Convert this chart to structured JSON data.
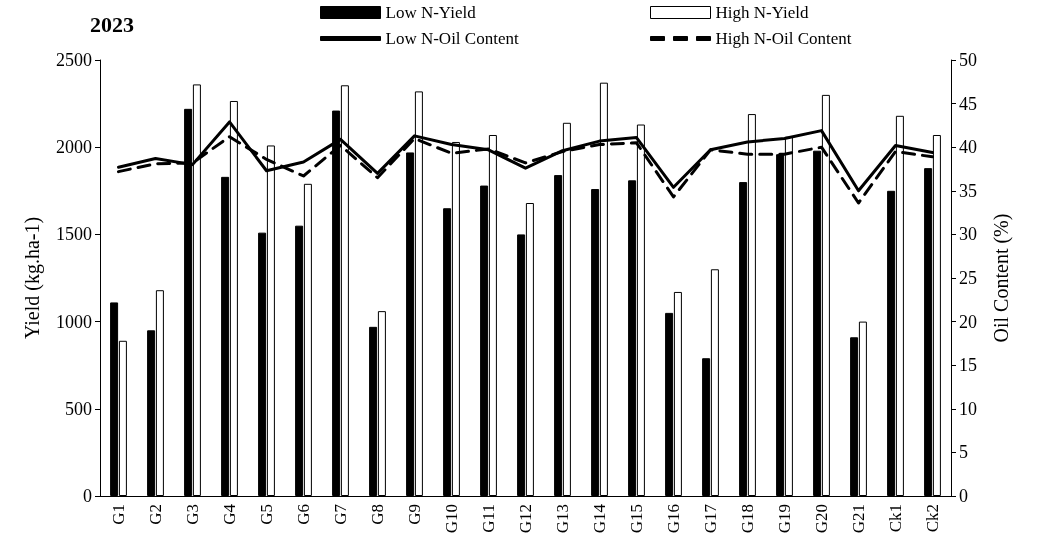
{
  "chart_data": {
    "type": "bar",
    "title": "2023",
    "ylabel": "Yield (kg.ha-1)",
    "y2label": "Oil Content (%)",
    "categories": [
      "G1",
      "G2",
      "G3",
      "G4",
      "G5",
      "G6",
      "G7",
      "G8",
      "G9",
      "G10",
      "G11",
      "G12",
      "G13",
      "G14",
      "G15",
      "G16",
      "G17",
      "G18",
      "G19",
      "G20",
      "G21",
      "Ck1",
      "Ck2"
    ],
    "series": [
      {
        "name": "Low N-Yield",
        "color": "#000000",
        "values": [
          1110,
          950,
          2220,
          1830,
          1510,
          1550,
          2210,
          970,
          1970,
          1650,
          1780,
          1500,
          1840,
          1760,
          1810,
          1050,
          790,
          1800,
          1960,
          1980,
          910,
          1750,
          1880
        ]
      },
      {
        "name": "High N-Yield",
        "color": "#ffffff",
        "values": [
          890,
          1180,
          2360,
          2265,
          2010,
          1790,
          2355,
          1060,
          2320,
          2030,
          2070,
          1680,
          2140,
          2370,
          2130,
          1170,
          1300,
          2190,
          2060,
          2300,
          1000,
          2180,
          2070
        ]
      },
      {
        "name": "Low N-Oil Content",
        "type": "line",
        "axis": "y2",
        "color": "#000000",
        "line_style": "solid",
        "values": [
          37.7,
          38.7,
          38.0,
          42.9,
          37.3,
          38.3,
          40.9,
          37.0,
          41.3,
          40.3,
          39.7,
          37.6,
          39.6,
          40.7,
          41.1,
          35.4,
          39.7,
          40.6,
          41.0,
          41.9,
          35.0,
          40.2,
          39.4
        ]
      },
      {
        "name": "High N-Oil Content",
        "type": "line",
        "axis": "y2",
        "color": "#000000",
        "line_style": "dashed",
        "values": [
          37.2,
          38.1,
          38.2,
          41.2,
          38.6,
          36.7,
          40.2,
          36.5,
          41.0,
          39.3,
          39.8,
          38.2,
          39.5,
          40.3,
          40.5,
          34.3,
          39.7,
          39.2,
          39.2,
          40.0,
          33.6,
          39.5,
          38.9
        ]
      }
    ],
    "ylim": [
      0,
      2500
    ],
    "yticks": [
      0,
      500,
      1000,
      1500,
      2000,
      2500
    ],
    "y2lim": [
      0,
      50
    ],
    "y2ticks": [
      0,
      5,
      10,
      15,
      20,
      25,
      30,
      35,
      40,
      45,
      50
    ],
    "grid": false,
    "legend": "top",
    "marker": "none"
  }
}
